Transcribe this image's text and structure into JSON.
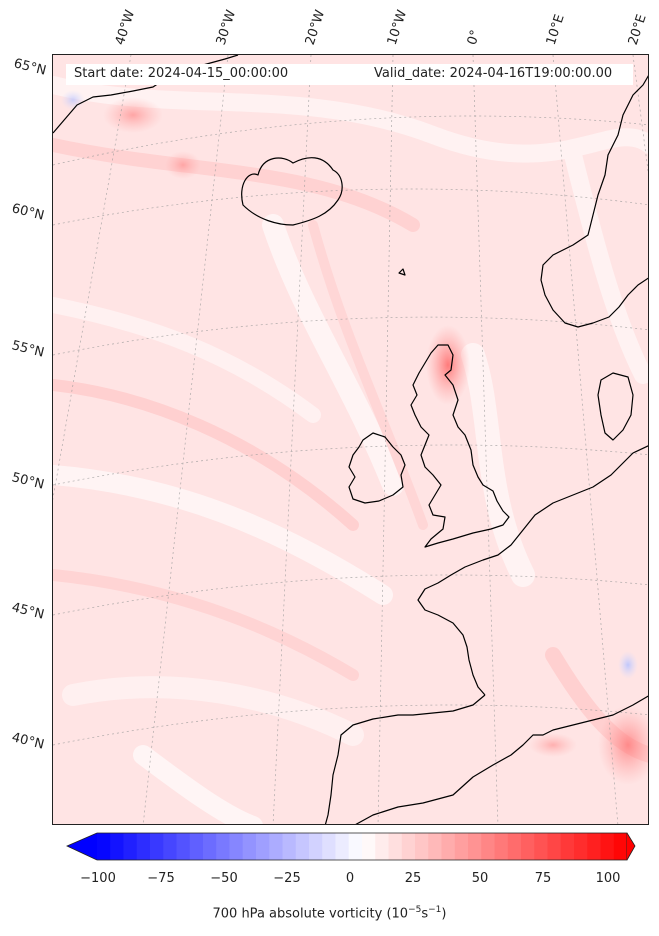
{
  "header": {
    "start_date": "Start date: 2024-04-15_00:00:00",
    "valid_date": "Valid_date: 2024-04-16T19:00:00.00"
  },
  "map": {
    "projection": "lambert-conformal",
    "region": "North-East Atlantic and Western Europe",
    "field": "700 hPa absolute vorticity",
    "background_color": "#ffe2e2",
    "coastline_color": "#000000",
    "gridline_color": "#b0b0b0",
    "lon_labels": [
      "40°W",
      "30°W",
      "20°W",
      "10°W",
      "0°",
      "10°E",
      "20°E"
    ],
    "lat_labels": [
      "65°N",
      "60°N",
      "55°N",
      "50°N",
      "45°N",
      "40°N"
    ]
  },
  "colorbar": {
    "min": -100,
    "max": 100,
    "ticks": [
      "−100",
      "−75",
      "−50",
      "−25",
      "0",
      "25",
      "50",
      "75",
      "100"
    ],
    "colormap": "bwr",
    "label_prefix": "700 hPa absolute vorticity (10",
    "label_exp1": "−5",
    "label_mid": "s",
    "label_exp2": "−1",
    "label_suffix": ")"
  }
}
